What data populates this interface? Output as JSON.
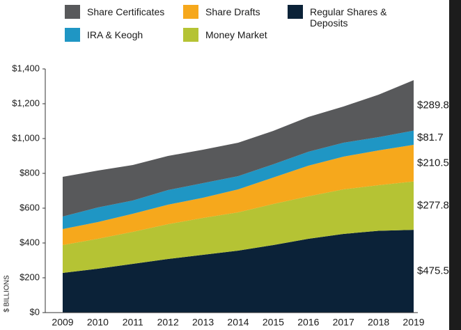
{
  "chart_data": {
    "type": "stacked_area",
    "y_axis_label": "$ BILLIONS",
    "categories": [
      "2009",
      "2010",
      "2011",
      "2012",
      "2013",
      "2014",
      "2015",
      "2016",
      "2017",
      "2018",
      "2019"
    ],
    "series": [
      {
        "name": "Regular Shares & Deposits",
        "color": "#0b2238",
        "values": [
          228,
          252,
          280,
          308,
          332,
          356,
          388,
          424,
          452,
          470,
          475.5
        ],
        "value_labels": [
          null,
          null,
          null,
          null,
          null,
          null,
          null,
          null,
          null,
          null,
          "$475.5"
        ]
      },
      {
        "name": "Money Market",
        "color": "#b5c334",
        "values": [
          160,
          172,
          184,
          200,
          212,
          220,
          236,
          244,
          256,
          262,
          277.8
        ],
        "value_labels": [
          null,
          null,
          null,
          null,
          null,
          null,
          null,
          null,
          null,
          null,
          "$277.8"
        ]
      },
      {
        "name": "Share Drafts",
        "color": "#f6a81c",
        "values": [
          92,
          96,
          104,
          112,
          116,
          132,
          152,
          176,
          188,
          200,
          210.5
        ],
        "value_labels": [
          null,
          null,
          null,
          null,
          null,
          null,
          null,
          null,
          null,
          null,
          "$210.5"
        ]
      },
      {
        "name": "IRA & Keogh",
        "color": "#1f96c4",
        "values": [
          72,
          84,
          76,
          84,
          84,
          76,
          76,
          80,
          80,
          76,
          81.7
        ],
        "value_labels": [
          null,
          null,
          null,
          null,
          null,
          null,
          null,
          null,
          null,
          null,
          "$81.7"
        ]
      },
      {
        "name": "Share Certificates",
        "color": "#58595b",
        "values": [
          228,
          212,
          204,
          196,
          192,
          192,
          192,
          200,
          208,
          244,
          289.8
        ],
        "value_labels": [
          null,
          null,
          null,
          null,
          null,
          null,
          null,
          null,
          null,
          null,
          "$289.8"
        ]
      }
    ],
    "ylim": [
      0,
      1400
    ],
    "yticks": [
      {
        "value": 0,
        "label": "$0"
      },
      {
        "value": 200,
        "label": "$200"
      },
      {
        "value": 400,
        "label": "$400"
      },
      {
        "value": 600,
        "label": "$600"
      },
      {
        "value": 800,
        "label": "$800"
      },
      {
        "value": 1000,
        "label": "$1,000"
      },
      {
        "value": 1200,
        "label": "$1,200"
      },
      {
        "value": 1400,
        "label": "$1,400"
      }
    ]
  }
}
